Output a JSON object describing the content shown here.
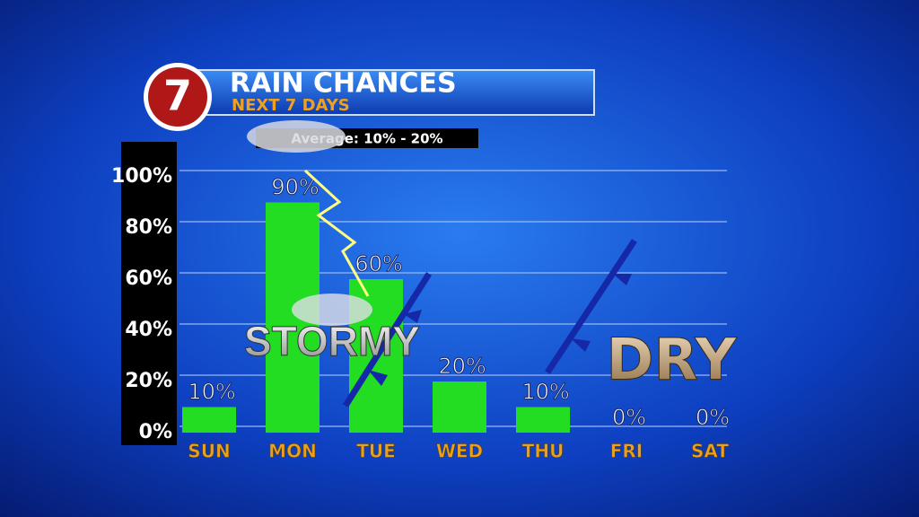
{
  "logo": "7",
  "chart_data": {
    "type": "bar",
    "title": "RAIN CHANCES",
    "subtitle": "NEXT 7 DAYS",
    "annotations": [
      "Average: 10% - 20%",
      "STORMY",
      "DRY"
    ],
    "categories": [
      "SUN",
      "MON",
      "TUE",
      "WED",
      "THU",
      "FRI",
      "SAT"
    ],
    "values": [
      10,
      90,
      60,
      20,
      10,
      0,
      0
    ],
    "value_labels": [
      "10%",
      "90%",
      "60%",
      "20%",
      "10%",
      "0%",
      "0%"
    ],
    "color": "#22dd22",
    "ylim": [
      0,
      100
    ],
    "yticks": [
      {
        "value": 0,
        "label": "0%"
      },
      {
        "value": 20,
        "label": "20%"
      },
      {
        "value": 40,
        "label": "40%"
      },
      {
        "value": 60,
        "label": "60%"
      },
      {
        "value": 80,
        "label": "80%"
      },
      {
        "value": 100,
        "label": "100%"
      }
    ],
    "grid": true
  }
}
